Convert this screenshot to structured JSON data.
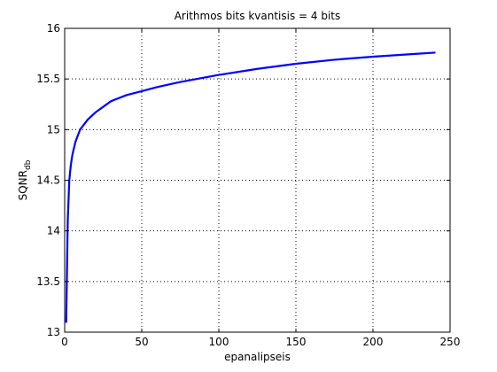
{
  "chart_data": {
    "type": "line",
    "title": "Arithmos bits kvantisis = 4 bits",
    "xlabel": "epanalipseis",
    "ylabel_main": "SQNR",
    "ylabel_sub": "db",
    "xlim": [
      0,
      250
    ],
    "ylim": [
      13,
      16
    ],
    "xticks": [
      0,
      50,
      100,
      150,
      200,
      250
    ],
    "yticks": [
      13,
      13.5,
      14,
      14.5,
      15,
      15.5,
      16
    ],
    "xtick_labels": [
      "0",
      "50",
      "100",
      "150",
      "200",
      "250"
    ],
    "ytick_labels": [
      "13",
      "13.5",
      "14",
      "14.5",
      "15",
      "15.5",
      "16"
    ],
    "grid": true,
    "line_color": "#0000ff",
    "series": [
      {
        "x": [
          1,
          2,
          3,
          4,
          5,
          7,
          10,
          15,
          20,
          30,
          40,
          50,
          60,
          75,
          100,
          125,
          150,
          175,
          200,
          225,
          240
        ],
        "values": [
          13.1,
          14.1,
          14.5,
          14.65,
          14.75,
          14.88,
          15.0,
          15.1,
          15.17,
          15.28,
          15.34,
          15.38,
          15.42,
          15.47,
          15.54,
          15.6,
          15.65,
          15.69,
          15.72,
          15.745,
          15.76
        ]
      }
    ]
  }
}
